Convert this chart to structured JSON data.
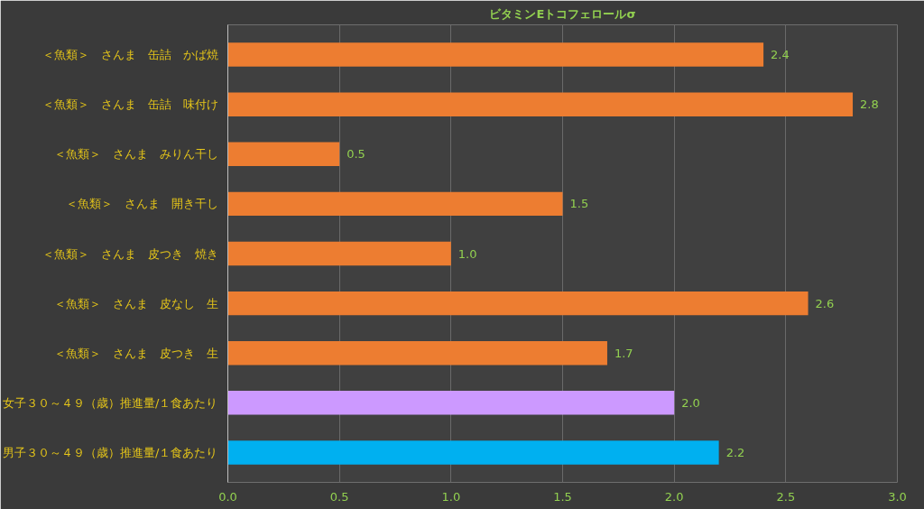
{
  "chart_data": {
    "type": "bar",
    "orientation": "horizontal",
    "title": "ビタミンEトコフェロールσ",
    "categories": [
      "＜魚類＞　さんま　缶詰　かば焼",
      "＜魚類＞　さんま　缶詰　味付け",
      "＜魚類＞　さんま　みりん干し",
      "＜魚類＞　さんま　開き干し",
      "＜魚類＞　さんま　皮つき　焼き",
      "＜魚類＞　さんま　皮なし　生",
      "＜魚類＞　さんま　皮つき　生",
      "女子３０～４９（歳）推進量/１食あたり",
      "男子３０～４９（歳）推進量/１食あたり"
    ],
    "values": [
      2.4,
      2.8,
      0.5,
      1.5,
      1.0,
      2.6,
      1.7,
      2.0,
      2.2
    ],
    "colors": [
      "#ed7d31",
      "#ed7d31",
      "#ed7d31",
      "#ed7d31",
      "#ed7d31",
      "#ed7d31",
      "#ed7d31",
      "#cc99ff",
      "#00b0f0"
    ],
    "xlim": [
      0,
      3
    ],
    "xticks": [
      {
        "value": 0,
        "label": "0.0"
      },
      {
        "value": 0.5,
        "label": "0.5"
      },
      {
        "value": 1,
        "label": "1.0"
      },
      {
        "value": 1.5,
        "label": "1.5"
      },
      {
        "value": 2,
        "label": "2.0"
      },
      {
        "value": 2.5,
        "label": "2.5"
      },
      {
        "value": 3,
        "label": "3.0"
      }
    ],
    "value_labels": [
      "2.4",
      "2.8",
      "0.5",
      "1.5",
      "1.0",
      "2.6",
      "1.7",
      "2.0",
      "2.2"
    ],
    "grid": "x"
  }
}
